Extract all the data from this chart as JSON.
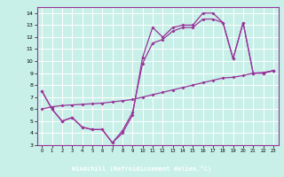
{
  "bg_color": "#c8f0e8",
  "line_color": "#993399",
  "grid_color": "#ffffff",
  "xlabel_bg": "#993399",
  "xlabel_fg": "#ffffff",
  "xlabel": "Windchill (Refroidissement éolien,°C)",
  "ylim": [
    3,
    14.5
  ],
  "xlim": [
    -0.5,
    23.5
  ],
  "yticks": [
    3,
    4,
    5,
    6,
    7,
    8,
    9,
    10,
    11,
    12,
    13,
    14
  ],
  "xticks": [
    0,
    1,
    2,
    3,
    4,
    5,
    6,
    7,
    8,
    9,
    10,
    11,
    12,
    13,
    14,
    15,
    16,
    17,
    18,
    19,
    20,
    21,
    22,
    23
  ],
  "line1_x": [
    0,
    1,
    2,
    3,
    4,
    5,
    6,
    7,
    8,
    9,
    10,
    11,
    12,
    13,
    14,
    15,
    16,
    17,
    18,
    19,
    20,
    21,
    22,
    23
  ],
  "line1_y": [
    7.5,
    6.0,
    5.0,
    5.3,
    4.5,
    4.3,
    4.3,
    3.2,
    4.0,
    5.5,
    10.3,
    12.8,
    12.0,
    12.8,
    13.0,
    13.0,
    14.0,
    14.0,
    13.2,
    10.2,
    13.2,
    9.0,
    9.0,
    9.2
  ],
  "line2_x": [
    0,
    1,
    2,
    3,
    4,
    5,
    6,
    7,
    8,
    9,
    10,
    11,
    12,
    13,
    14,
    15,
    16,
    17,
    18,
    19,
    20,
    21,
    22,
    23
  ],
  "line2_y": [
    7.5,
    6.0,
    5.0,
    5.3,
    4.5,
    4.3,
    4.3,
    3.2,
    4.2,
    5.7,
    9.8,
    11.5,
    11.8,
    12.5,
    12.8,
    12.8,
    13.5,
    13.5,
    13.2,
    10.2,
    13.2,
    9.0,
    9.0,
    9.2
  ],
  "line3_x": [
    0,
    1,
    2,
    3,
    4,
    5,
    6,
    7,
    8,
    9,
    10,
    11,
    12,
    13,
    14,
    15,
    16,
    17,
    18,
    19,
    20,
    21,
    22,
    23
  ],
  "line3_y": [
    6.0,
    6.2,
    6.3,
    6.35,
    6.4,
    6.45,
    6.5,
    6.6,
    6.7,
    6.8,
    7.0,
    7.2,
    7.4,
    7.6,
    7.8,
    8.0,
    8.2,
    8.4,
    8.6,
    8.65,
    8.8,
    9.0,
    9.05,
    9.2
  ]
}
